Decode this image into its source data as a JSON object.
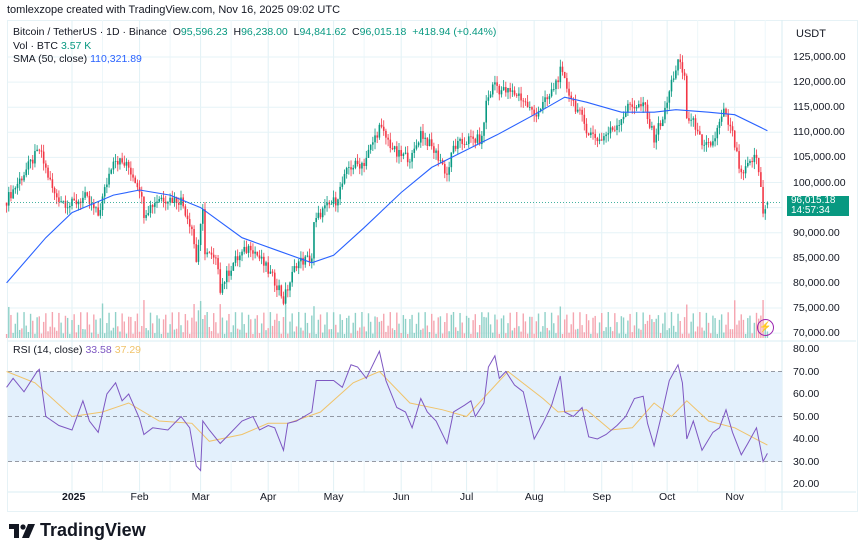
{
  "attribution": "tomlexzope created with TradingView.com, Nov 16, 2025 09:02 UTC",
  "legend": {
    "symbol": "Bitcoin / TetherUS · 1D · Binance",
    "o_label": "O",
    "o": "95,596.23",
    "h_label": "H",
    "h": "96,238.00",
    "l_label": "L",
    "l": "94,841.62",
    "c_label": "C",
    "c": "96,015.18",
    "change": "+418.94 (+0.44%)",
    "vol_label": "Vol · BTC",
    "vol": "3.57 K",
    "sma_label": "SMA (50, close)",
    "sma": "110,321.89",
    "rsi_label": "RSI (14, close)",
    "rsi": "33.58",
    "rsi_ma": "37.29"
  },
  "price_axis": {
    "currency": "USDT",
    "ticks": [
      "125,000.00",
      "120,000.00",
      "115,000.00",
      "110,000.00",
      "105,000.00",
      "100,000.00",
      "90,000.00",
      "85,000.00",
      "80,000.00",
      "75,000.00",
      "70,000.00"
    ],
    "last_price": "96,015.18",
    "countdown": "14:57:34"
  },
  "rsi_axis": {
    "ticks": [
      "80.00",
      "70.00",
      "60.00",
      "50.00",
      "40.00",
      "30.00",
      "20.00"
    ]
  },
  "time_axis": [
    "2025",
    "Feb",
    "Mar",
    "Apr",
    "May",
    "Jun",
    "Jul",
    "Aug",
    "Sep",
    "Oct",
    "Nov"
  ],
  "logo": "TradingView",
  "colors": {
    "up": "#089981",
    "down": "#f23645",
    "sma": "#2962ff",
    "rsi": "#7e57c2",
    "rsi_ma": "#f0c36a",
    "rsi_band": "#e3f0fc"
  },
  "chart_data": [
    {
      "type": "candlestick",
      "title": "Bitcoin / TetherUS · 1D · Binance",
      "ylim": [
        70000,
        127000
      ],
      "x_range": [
        "2024-12-02",
        "2025-11-16"
      ],
      "close_keypoints": [
        [
          "2024-12-02",
          96500
        ],
        [
          "2024-12-08",
          100500
        ],
        [
          "2024-12-17",
          106500
        ],
        [
          "2024-12-24",
          97500
        ],
        [
          "2024-12-31",
          95500
        ],
        [
          "2025-01-07",
          97000
        ],
        [
          "2025-01-13",
          93500
        ],
        [
          "2025-01-20",
          105000
        ],
        [
          "2025-01-27",
          103000
        ],
        [
          "2025-02-01",
          99000
        ],
        [
          "2025-02-03",
          94000
        ],
        [
          "2025-02-10",
          97000
        ],
        [
          "2025-02-20",
          96500
        ],
        [
          "2025-02-25",
          91000
        ],
        [
          "2025-02-27",
          84500
        ],
        [
          "2025-03-02",
          94000
        ],
        [
          "2025-03-03",
          86500
        ],
        [
          "2025-03-09",
          83500
        ],
        [
          "2025-03-10",
          79000
        ],
        [
          "2025-03-16",
          84000
        ],
        [
          "2025-03-24",
          87500
        ],
        [
          "2025-03-31",
          83000
        ],
        [
          "2025-04-06",
          79000
        ],
        [
          "2025-04-08",
          76500
        ],
        [
          "2025-04-14",
          84000
        ],
        [
          "2025-04-21",
          85000
        ],
        [
          "2025-04-22",
          91500
        ],
        [
          "2025-04-25",
          94000
        ],
        [
          "2025-05-02",
          96500
        ],
        [
          "2025-05-08",
          103000
        ],
        [
          "2025-05-15",
          104000
        ],
        [
          "2025-05-22",
          111000
        ],
        [
          "2025-05-30",
          105500
        ],
        [
          "2025-06-06",
          105000
        ],
        [
          "2025-06-10",
          110000
        ],
        [
          "2025-06-19",
          104500
        ],
        [
          "2025-06-22",
          101500
        ],
        [
          "2025-06-25",
          107000
        ],
        [
          "2025-07-02",
          108500
        ],
        [
          "2025-07-08",
          108500
        ],
        [
          "2025-07-10",
          116000
        ],
        [
          "2025-07-14",
          120000
        ],
        [
          "2025-07-16",
          118500
        ],
        [
          "2025-07-25",
          117500
        ],
        [
          "2025-08-01",
          113500
        ],
        [
          "2025-08-08",
          117000
        ],
        [
          "2025-08-13",
          122000
        ],
        [
          "2025-08-19",
          116000
        ],
        [
          "2025-08-26",
          110000
        ],
        [
          "2025-08-31",
          108500
        ],
        [
          "2025-09-07",
          111000
        ],
        [
          "2025-09-14",
          115500
        ],
        [
          "2025-09-21",
          115000
        ],
        [
          "2025-09-22",
          112500
        ],
        [
          "2025-09-25",
          109000
        ],
        [
          "2025-09-30",
          114000
        ],
        [
          "2025-10-03",
          120000
        ],
        [
          "2025-10-06",
          124000
        ],
        [
          "2025-10-09",
          121000
        ],
        [
          "2025-10-10",
          113000
        ],
        [
          "2025-10-15",
          111000
        ],
        [
          "2025-10-17",
          106500
        ],
        [
          "2025-10-22",
          108000
        ],
        [
          "2025-10-27",
          114000
        ],
        [
          "2025-10-31",
          109500
        ],
        [
          "2025-11-04",
          101000
        ],
        [
          "2025-11-09",
          104500
        ],
        [
          "2025-11-11",
          105000
        ],
        [
          "2025-11-13",
          99000
        ],
        [
          "2025-11-14",
          94500
        ],
        [
          "2025-11-16",
          96015.18
        ]
      ],
      "last_candle": {
        "open": 95596.23,
        "high": 96238.0,
        "low": 94841.62,
        "close": 96015.18
      },
      "sma50_keypoints": [
        [
          "2024-12-02",
          80000
        ],
        [
          "2024-12-20",
          89000
        ],
        [
          "2025-01-01",
          94000
        ],
        [
          "2025-01-20",
          97500
        ],
        [
          "2025-02-01",
          98500
        ],
        [
          "2025-02-15",
          97500
        ],
        [
          "2025-03-01",
          95000
        ],
        [
          "2025-03-20",
          89000
        ],
        [
          "2025-04-05",
          86500
        ],
        [
          "2025-04-21",
          84000
        ],
        [
          "2025-05-01",
          85500
        ],
        [
          "2025-05-15",
          91000
        ],
        [
          "2025-06-01",
          98000
        ],
        [
          "2025-06-15",
          103000
        ],
        [
          "2025-07-01",
          106500
        ],
        [
          "2025-07-15",
          109500
        ],
        [
          "2025-08-01",
          113500
        ],
        [
          "2025-08-15",
          117000
        ],
        [
          "2025-08-25",
          116000
        ],
        [
          "2025-09-10",
          114000
        ],
        [
          "2025-09-25",
          114000
        ],
        [
          "2025-10-05",
          114500
        ],
        [
          "2025-10-20",
          114000
        ],
        [
          "2025-11-01",
          113500
        ],
        [
          "2025-11-16",
          110321.89
        ]
      ]
    },
    {
      "type": "line",
      "title": "RSI (14, close)",
      "ylim": [
        20,
        80
      ],
      "bands": [
        30,
        50,
        70
      ],
      "series": [
        {
          "name": "RSI",
          "points": [
            [
              "2024-12-02",
              63
            ],
            [
              "2024-12-05",
              67
            ],
            [
              "2024-12-10",
              61
            ],
            [
              "2024-12-16",
              70
            ],
            [
              "2024-12-17",
              71
            ],
            [
              "2024-12-20",
              50
            ],
            [
              "2024-12-26",
              46
            ],
            [
              "2025-01-01",
              44
            ],
            [
              "2025-01-06",
              57
            ],
            [
              "2025-01-09",
              48
            ],
            [
              "2025-01-13",
              43
            ],
            [
              "2025-01-17",
              60
            ],
            [
              "2025-01-21",
              65
            ],
            [
              "2025-01-24",
              57
            ],
            [
              "2025-01-27",
              60
            ],
            [
              "2025-02-01",
              49
            ],
            [
              "2025-02-03",
              42
            ],
            [
              "2025-02-07",
              45
            ],
            [
              "2025-02-14",
              44
            ],
            [
              "2025-02-20",
              50
            ],
            [
              "2025-02-24",
              45
            ],
            [
              "2025-02-27",
              28
            ],
            [
              "2025-03-01",
              26
            ],
            [
              "2025-03-02",
              48
            ],
            [
              "2025-03-05",
              44
            ],
            [
              "2025-03-10",
              38
            ],
            [
              "2025-03-14",
              42
            ],
            [
              "2025-03-20",
              48
            ],
            [
              "2025-03-25",
              50
            ],
            [
              "2025-03-28",
              44
            ],
            [
              "2025-04-01",
              46
            ],
            [
              "2025-04-04",
              45
            ],
            [
              "2025-04-08",
              35
            ],
            [
              "2025-04-10",
              47
            ],
            [
              "2025-04-14",
              48
            ],
            [
              "2025-04-21",
              52
            ],
            [
              "2025-04-23",
              66
            ],
            [
              "2025-05-01",
              66
            ],
            [
              "2025-05-05",
              63
            ],
            [
              "2025-05-09",
              73
            ],
            [
              "2025-05-12",
              72
            ],
            [
              "2025-05-16",
              67
            ],
            [
              "2025-05-22",
              79
            ],
            [
              "2025-05-25",
              66
            ],
            [
              "2025-05-30",
              54
            ],
            [
              "2025-06-03",
              52
            ],
            [
              "2025-06-06",
              45
            ],
            [
              "2025-06-10",
              58
            ],
            [
              "2025-06-13",
              52
            ],
            [
              "2025-06-17",
              48
            ],
            [
              "2025-06-22",
              38
            ],
            [
              "2025-06-25",
              52
            ],
            [
              "2025-06-30",
              55
            ],
            [
              "2025-07-03",
              57
            ],
            [
              "2025-07-05",
              50
            ],
            [
              "2025-07-09",
              56
            ],
            [
              "2025-07-11",
              72
            ],
            [
              "2025-07-14",
              77
            ],
            [
              "2025-07-16",
              67
            ],
            [
              "2025-07-19",
              70
            ],
            [
              "2025-07-23",
              64
            ],
            [
              "2025-07-27",
              61
            ],
            [
              "2025-08-01",
              40
            ],
            [
              "2025-08-05",
              47
            ],
            [
              "2025-08-09",
              55
            ],
            [
              "2025-08-13",
              68
            ],
            [
              "2025-08-15",
              52
            ],
            [
              "2025-08-19",
              50
            ],
            [
              "2025-08-23",
              54
            ],
            [
              "2025-08-26",
              41
            ],
            [
              "2025-08-30",
              40
            ],
            [
              "2025-09-03",
              42
            ],
            [
              "2025-09-08",
              46
            ],
            [
              "2025-09-12",
              50
            ],
            [
              "2025-09-16",
              58
            ],
            [
              "2025-09-20",
              59
            ],
            [
              "2025-09-22",
              47
            ],
            [
              "2025-09-25",
              37
            ],
            [
              "2025-09-29",
              53
            ],
            [
              "2025-10-02",
              66
            ],
            [
              "2025-10-06",
              73
            ],
            [
              "2025-10-08",
              65
            ],
            [
              "2025-10-10",
              40
            ],
            [
              "2025-10-13",
              48
            ],
            [
              "2025-10-17",
              35
            ],
            [
              "2025-10-22",
              43
            ],
            [
              "2025-10-25",
              45
            ],
            [
              "2025-10-28",
              53
            ],
            [
              "2025-10-31",
              43
            ],
            [
              "2025-11-04",
              33
            ],
            [
              "2025-11-07",
              38
            ],
            [
              "2025-11-11",
              45
            ],
            [
              "2025-11-14",
              30
            ],
            [
              "2025-11-16",
              33.58
            ]
          ]
        },
        {
          "name": "RSI MA",
          "points": [
            [
              "2024-12-02",
              70
            ],
            [
              "2024-12-15",
              65
            ],
            [
              "2025-01-01",
              50
            ],
            [
              "2025-01-15",
              52
            ],
            [
              "2025-01-27",
              56
            ],
            [
              "2025-02-10",
              48
            ],
            [
              "2025-02-25",
              47
            ],
            [
              "2025-03-05",
              39
            ],
            [
              "2025-03-20",
              42
            ],
            [
              "2025-04-01",
              47
            ],
            [
              "2025-04-10",
              47
            ],
            [
              "2025-04-25",
              52
            ],
            [
              "2025-05-10",
              65
            ],
            [
              "2025-05-22",
              70
            ],
            [
              "2025-06-05",
              56
            ],
            [
              "2025-06-20",
              53
            ],
            [
              "2025-07-01",
              50
            ],
            [
              "2025-07-20",
              70
            ],
            [
              "2025-08-05",
              58
            ],
            [
              "2025-08-12",
              52
            ],
            [
              "2025-08-25",
              53
            ],
            [
              "2025-09-05",
              44
            ],
            [
              "2025-09-15",
              45
            ],
            [
              "2025-09-25",
              56
            ],
            [
              "2025-10-03",
              50
            ],
            [
              "2025-10-10",
              57
            ],
            [
              "2025-10-20",
              48
            ],
            [
              "2025-11-01",
              45
            ],
            [
              "2025-11-16",
              37.29
            ]
          ]
        }
      ]
    }
  ]
}
